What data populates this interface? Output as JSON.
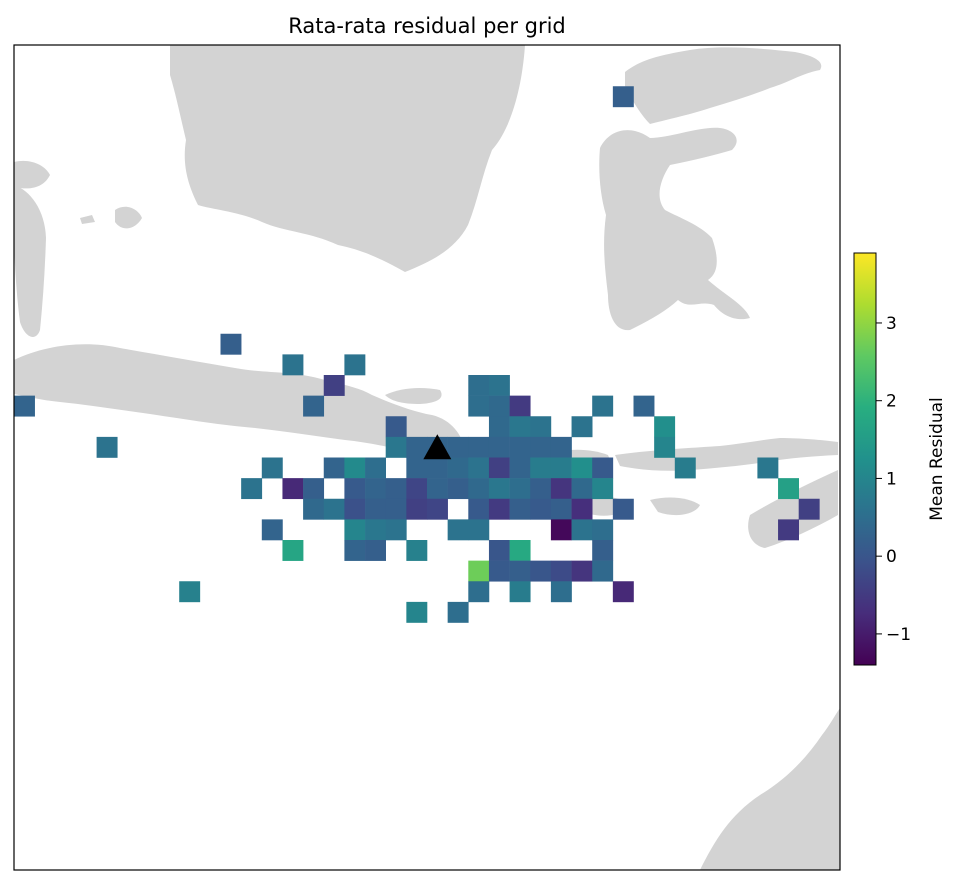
{
  "chart_data": {
    "type": "heatmap",
    "title": "Rata-rata residual per grid",
    "colorbar": {
      "label": "Mean Residual",
      "range": [
        -1.4,
        3.9
      ],
      "ticks": [
        {
          "value": -1,
          "label": "−1"
        },
        {
          "value": 0,
          "label": "0"
        },
        {
          "value": 1,
          "label": "1"
        },
        {
          "value": 2,
          "label": "2"
        },
        {
          "value": 3,
          "label": "3"
        }
      ],
      "colormap": "viridis"
    },
    "grid": {
      "columns": 40,
      "rows": 40
    },
    "cells": [
      [
        29,
        2,
        0.2
      ],
      [
        10,
        14,
        0.2
      ],
      [
        13,
        15,
        0.6
      ],
      [
        16,
        15,
        0.6
      ],
      [
        15,
        16,
        -0.4
      ],
      [
        22,
        16,
        0.5
      ],
      [
        23,
        16,
        0.6
      ],
      [
        0,
        17,
        0.3
      ],
      [
        14,
        17,
        0.3
      ],
      [
        22,
        17,
        0.5
      ],
      [
        23,
        17,
        0.4
      ],
      [
        24,
        17,
        -0.5
      ],
      [
        28,
        17,
        0.6
      ],
      [
        30,
        17,
        0.3
      ],
      [
        18,
        18,
        0.1
      ],
      [
        23,
        18,
        0.4
      ],
      [
        24,
        18,
        0.7
      ],
      [
        25,
        18,
        0.6
      ],
      [
        27,
        18,
        0.6
      ],
      [
        31,
        18,
        1.2
      ],
      [
        4,
        19,
        0.6
      ],
      [
        18,
        19,
        0.7
      ],
      [
        19,
        19,
        0.3
      ],
      [
        20,
        19,
        0.3
      ],
      [
        21,
        19,
        0.3
      ],
      [
        22,
        19,
        0.3
      ],
      [
        23,
        19,
        0.3
      ],
      [
        24,
        19,
        0.3
      ],
      [
        25,
        19,
        0.3
      ],
      [
        26,
        19,
        0.3
      ],
      [
        31,
        19,
        1.0
      ],
      [
        12,
        20,
        0.6
      ],
      [
        15,
        20,
        0.3
      ],
      [
        16,
        20,
        1.1
      ],
      [
        17,
        20,
        0.5
      ],
      [
        19,
        20,
        0.3
      ],
      [
        20,
        20,
        0.3
      ],
      [
        21,
        20,
        0.4
      ],
      [
        22,
        20,
        0.6
      ],
      [
        23,
        20,
        -0.4
      ],
      [
        24,
        20,
        0.3
      ],
      [
        25,
        20,
        0.8
      ],
      [
        26,
        20,
        0.8
      ],
      [
        27,
        20,
        1.2
      ],
      [
        28,
        20,
        0.1
      ],
      [
        32,
        20,
        0.8
      ],
      [
        36,
        20,
        0.7
      ],
      [
        11,
        21,
        0.6
      ],
      [
        13,
        21,
        -0.8
      ],
      [
        14,
        21,
        0.2
      ],
      [
        16,
        21,
        0.1
      ],
      [
        17,
        21,
        0.3
      ],
      [
        18,
        21,
        0.2
      ],
      [
        19,
        21,
        -0.3
      ],
      [
        20,
        21,
        0.3
      ],
      [
        21,
        21,
        0.2
      ],
      [
        22,
        21,
        0.4
      ],
      [
        23,
        21,
        0.7
      ],
      [
        24,
        21,
        0.5
      ],
      [
        25,
        21,
        0.2
      ],
      [
        26,
        21,
        -0.6
      ],
      [
        27,
        21,
        0.4
      ],
      [
        28,
        21,
        1.0
      ],
      [
        37,
        21,
        1.6
      ],
      [
        14,
        22,
        0.4
      ],
      [
        15,
        22,
        0.6
      ],
      [
        16,
        22,
        -0.1
      ],
      [
        17,
        22,
        0.2
      ],
      [
        18,
        22,
        0.2
      ],
      [
        19,
        22,
        -0.4
      ],
      [
        20,
        22,
        -0.3
      ],
      [
        22,
        22,
        0.1
      ],
      [
        23,
        22,
        -0.5
      ],
      [
        24,
        22,
        0.2
      ],
      [
        25,
        22,
        0.1
      ],
      [
        26,
        22,
        0.2
      ],
      [
        27,
        22,
        -0.7
      ],
      [
        29,
        22,
        0.1
      ],
      [
        38,
        22,
        -0.4
      ],
      [
        12,
        23,
        0.3
      ],
      [
        16,
        23,
        1.0
      ],
      [
        17,
        23,
        0.7
      ],
      [
        18,
        23,
        0.6
      ],
      [
        21,
        23,
        0.6
      ],
      [
        22,
        23,
        0.6
      ],
      [
        26,
        23,
        -1.3
      ],
      [
        27,
        23,
        0.6
      ],
      [
        28,
        23,
        0.5
      ],
      [
        37,
        23,
        -0.5
      ],
      [
        13,
        24,
        1.7
      ],
      [
        16,
        24,
        0.3
      ],
      [
        17,
        24,
        0.2
      ],
      [
        19,
        24,
        0.9
      ],
      [
        23,
        24,
        0.0
      ],
      [
        24,
        24,
        1.8
      ],
      [
        28,
        24,
        0.2
      ],
      [
        22,
        25,
        2.7
      ],
      [
        23,
        25,
        0.1
      ],
      [
        24,
        25,
        0.2
      ],
      [
        25,
        25,
        0.0
      ],
      [
        26,
        25,
        -0.2
      ],
      [
        27,
        25,
        -0.6
      ],
      [
        28,
        25,
        0.4
      ],
      [
        8,
        26,
        0.9
      ],
      [
        22,
        26,
        0.5
      ],
      [
        24,
        26,
        0.8
      ],
      [
        26,
        26,
        0.5
      ],
      [
        29,
        26,
        -0.8
      ],
      [
        19,
        27,
        1.0
      ],
      [
        21,
        27,
        0.5
      ]
    ],
    "marker": {
      "type": "triangle",
      "color": "#000000",
      "col": 20.5,
      "row": 19.5
    }
  }
}
